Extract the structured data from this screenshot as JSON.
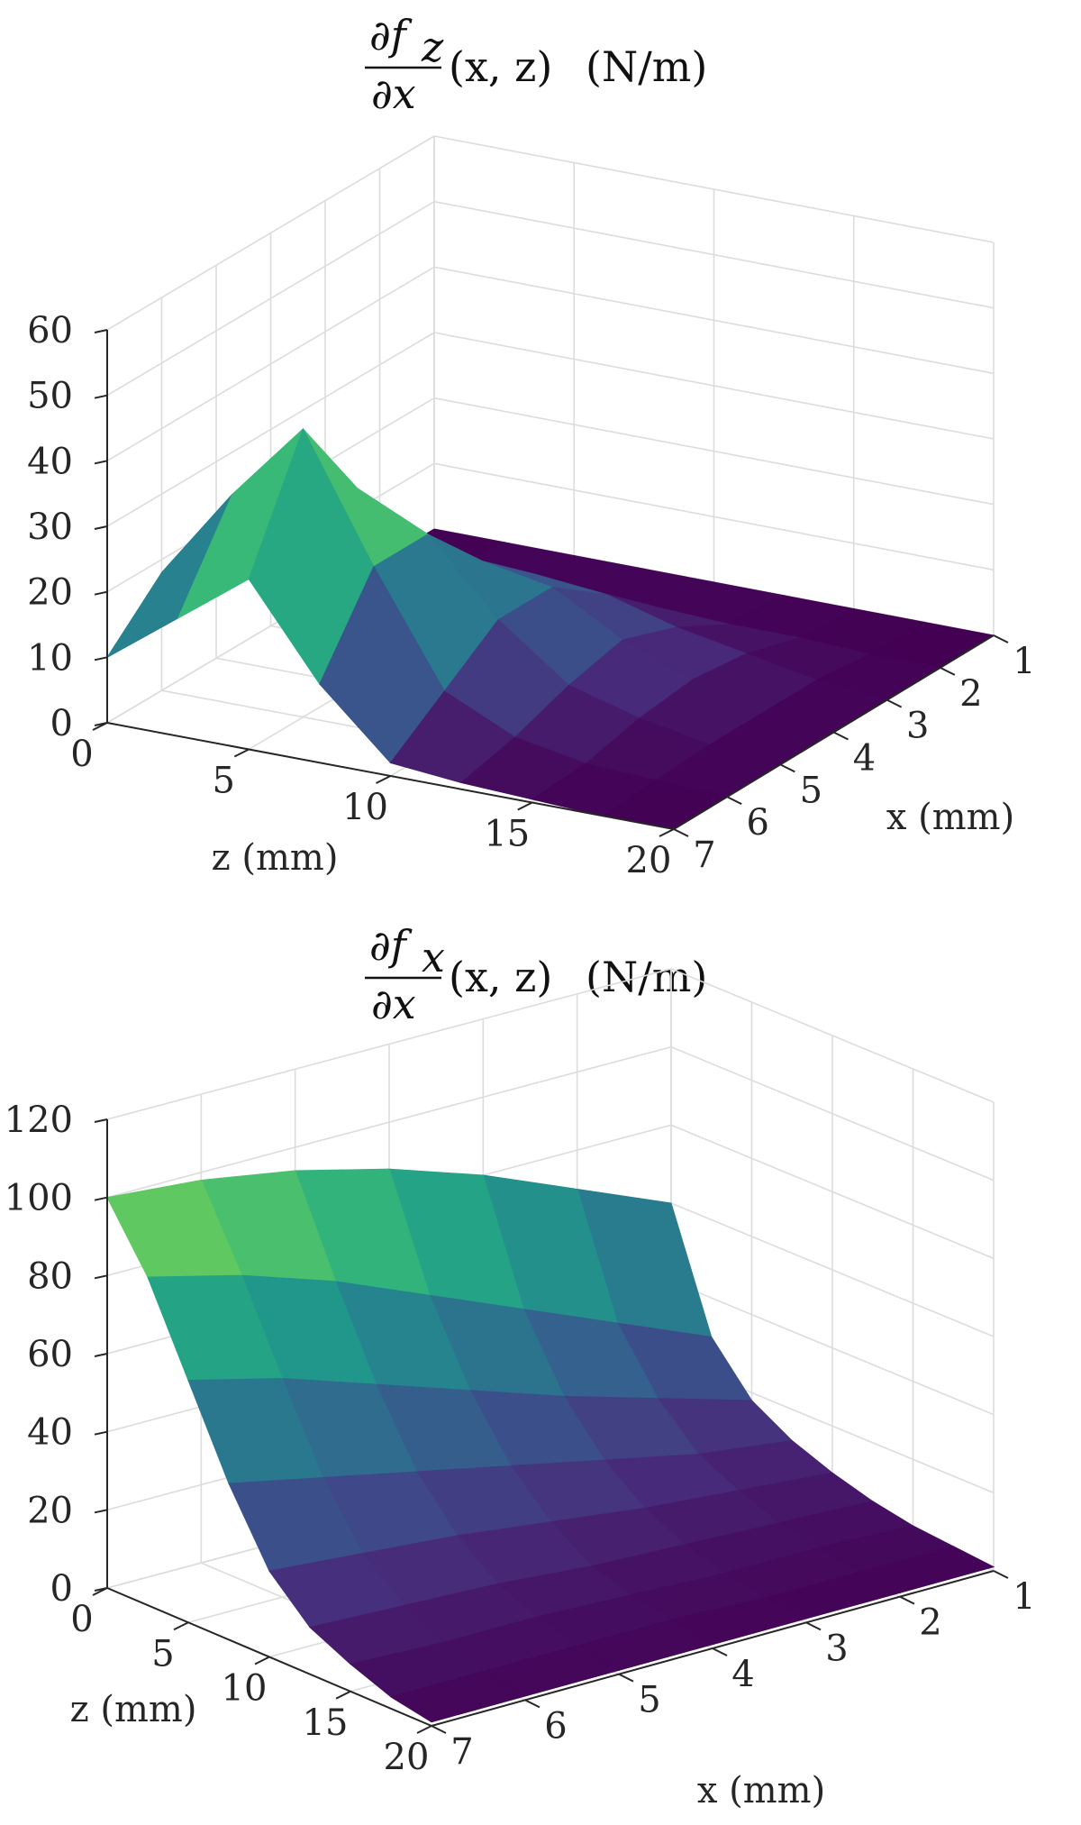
{
  "chart_data": [
    {
      "type": "surface",
      "title": {
        "numerator_d": "∂",
        "numerator_f": "f",
        "numerator_sub": "z",
        "denominator": "∂x",
        "args": "(x, z)",
        "units": "(N/m)"
      },
      "xlabel": "x (mm)",
      "zlabel_axis": "z (mm)",
      "x_ticks": [
        "1",
        "2",
        "3",
        "4",
        "5",
        "6",
        "7"
      ],
      "z_ticks": [
        "0",
        "5",
        "10",
        "15",
        "20"
      ],
      "value_ticks": [
        "0",
        "10",
        "20",
        "30",
        "40",
        "50",
        "60"
      ],
      "xlim": [
        1,
        7
      ],
      "zlim": [
        0,
        20
      ],
      "vlim": [
        0,
        60
      ],
      "colormap": "viridis",
      "grid": true,
      "x": [
        1,
        2,
        3,
        4,
        5,
        6,
        7
      ],
      "z": [
        0,
        2.5,
        5,
        7.5,
        10,
        12.5,
        15,
        17.5,
        20
      ],
      "values": [
        [
          0,
          0,
          0,
          0,
          0,
          0,
          0,
          0,
          0
        ],
        [
          0,
          0.5,
          1,
          1,
          1,
          0.5,
          0.5,
          0,
          0
        ],
        [
          2,
          3,
          6,
          9,
          8,
          5,
          3,
          1,
          0
        ],
        [
          8,
          10,
          14,
          16,
          14,
          8,
          4,
          1,
          0
        ],
        [
          15,
          24,
          30,
          25,
          14,
          6,
          3,
          1,
          0
        ],
        [
          18,
          32,
          44,
          25,
          8,
          3,
          1,
          0.5,
          0
        ],
        [
          10,
          18,
          26,
          12,
          2,
          1,
          0.5,
          0,
          0
        ]
      ]
    },
    {
      "type": "surface",
      "title": {
        "numerator_d": "∂",
        "numerator_f": "f",
        "numerator_sub": "x",
        "denominator": "∂x",
        "args": "(x, z)",
        "units": "(N/m)"
      },
      "xlabel": "x (mm)",
      "zlabel_axis": "z (mm)",
      "x_ticks": [
        "1",
        "2",
        "3",
        "4",
        "5",
        "6",
        "7"
      ],
      "z_ticks": [
        "0",
        "5",
        "10",
        "15",
        "20"
      ],
      "value_ticks": [
        "0",
        "20",
        "40",
        "60",
        "80",
        "100",
        "120"
      ],
      "xlim": [
        1,
        7
      ],
      "zlim": [
        0,
        20
      ],
      "vlim": [
        0,
        120
      ],
      "colormap": "viridis",
      "grid": true,
      "x": [
        1,
        2,
        3,
        4,
        5,
        6,
        7
      ],
      "z": [
        0,
        2.5,
        5,
        7.5,
        10,
        12.5,
        15,
        17.5,
        20
      ],
      "values": [
        [
          60,
          30,
          18,
          12,
          8,
          5,
          3,
          2,
          1
        ],
        [
          70,
          40,
          25,
          15,
          10,
          6,
          4,
          2,
          1
        ],
        [
          80,
          50,
          32,
          20,
          12,
          7,
          4,
          2,
          1
        ],
        [
          88,
          60,
          40,
          25,
          15,
          8,
          5,
          3,
          1
        ],
        [
          94,
          70,
          48,
          30,
          18,
          10,
          6,
          3,
          1
        ],
        [
          98,
          78,
          56,
          35,
          20,
          11,
          6,
          3,
          1
        ],
        [
          100,
          84,
          62,
          40,
          22,
          12,
          7,
          3,
          1
        ]
      ]
    }
  ]
}
